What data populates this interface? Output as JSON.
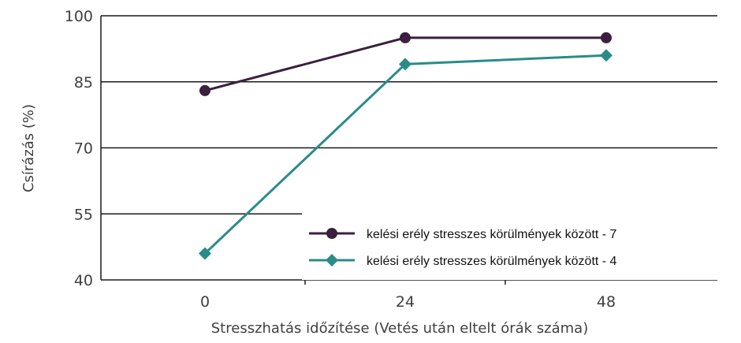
{
  "chart_data": {
    "type": "line",
    "title": "",
    "xlabel": "Stresszhatás időzítése (Vetés után eltelt órák száma)",
    "ylabel": "Csírázás (%)",
    "categories": [
      "0",
      "24",
      "48"
    ],
    "ylim": [
      40,
      100
    ],
    "yticks": [
      "40",
      "55",
      "70",
      "85",
      "100"
    ],
    "grid": "horizontal",
    "legend_position": "bottom-right",
    "series": [
      {
        "name": "kelési erély stresszes körülmények között - 7",
        "values": [
          83,
          95,
          95
        ],
        "color": "#3b1f3f",
        "marker": "circle"
      },
      {
        "name": "kelési erély stresszes körülmények között - 4",
        "values": [
          46,
          89,
          91
        ],
        "color": "#2a8c88",
        "marker": "diamond"
      }
    ]
  }
}
